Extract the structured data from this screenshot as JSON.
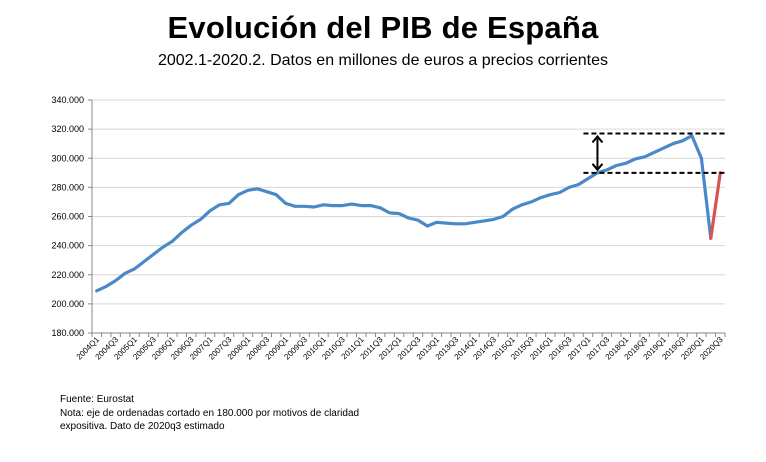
{
  "chart_data": {
    "type": "line",
    "title": "Evolución del PIB de España",
    "subtitle": "2002.1-2020.2. Datos en millones de euros a precios corrientes",
    "xlabel": "",
    "ylabel": "",
    "ylim": [
      180000,
      340000
    ],
    "yticks": [
      180000,
      200000,
      220000,
      240000,
      260000,
      280000,
      300000,
      320000,
      340000
    ],
    "ytick_labels": [
      "180.000",
      "200.000",
      "220.000",
      "240.000",
      "260.000",
      "280.000",
      "300.000",
      "320.000",
      "340.000"
    ],
    "grid": true,
    "legend": "none",
    "categories": [
      "2004Q1",
      "2004Q2",
      "2004Q3",
      "2004Q4",
      "2005Q1",
      "2005Q2",
      "2005Q3",
      "2005Q4",
      "2006Q1",
      "2006Q2",
      "2006Q3",
      "2006Q4",
      "2007Q1",
      "2007Q2",
      "2007Q3",
      "2007Q4",
      "2008Q1",
      "2008Q2",
      "2008Q3",
      "2008Q4",
      "2009Q1",
      "2009Q2",
      "2009Q3",
      "2009Q4",
      "2010Q1",
      "2010Q2",
      "2010Q3",
      "2010Q4",
      "2011Q1",
      "2011Q2",
      "2011Q3",
      "2011Q4",
      "2012Q1",
      "2012Q2",
      "2012Q3",
      "2012Q4",
      "2013Q1",
      "2013Q2",
      "2013Q3",
      "2013Q4",
      "2014Q1",
      "2014Q2",
      "2014Q3",
      "2014Q4",
      "2015Q1",
      "2015Q2",
      "2015Q3",
      "2015Q4",
      "2016Q1",
      "2016Q2",
      "2016Q3",
      "2016Q4",
      "2017Q1",
      "2017Q2",
      "2017Q3",
      "2017Q4",
      "2018Q1",
      "2018Q2",
      "2018Q3",
      "2018Q4",
      "2019Q1",
      "2019Q2",
      "2019Q3",
      "2019Q4",
      "2020Q1",
      "2020Q2",
      "2020Q3"
    ],
    "tick_labels": [
      "2004Q1",
      "2004Q3",
      "2005Q1",
      "2005Q3",
      "2006Q1",
      "2006Q3",
      "2007Q1",
      "2007Q3",
      "2008Q1",
      "2008Q3",
      "2009Q1",
      "2009Q3",
      "2010Q1",
      "2010Q3",
      "2011Q1",
      "2011Q3",
      "2012Q1",
      "2012Q3",
      "2013Q1",
      "2013Q3",
      "2014Q1",
      "2014Q3",
      "2015Q1",
      "2015Q3",
      "2016Q1",
      "2016Q3",
      "2017Q1",
      "2017Q3",
      "2018Q1",
      "2018Q3",
      "2019Q1",
      "2019Q3",
      "2020Q1",
      "2020Q3"
    ],
    "series": [
      {
        "color": "#4a89c8",
        "values": [
          209000,
          212000,
          216000,
          221000,
          224000,
          229000,
          234000,
          239000,
          243000,
          249000,
          254000,
          258000,
          264000,
          268000,
          269000,
          275000,
          278000,
          279000,
          277000,
          275000,
          269000,
          267000,
          267000,
          266500,
          268000,
          267500,
          267500,
          268500,
          267500,
          267500,
          266000,
          262500,
          262000,
          259000,
          257500,
          253500,
          256000,
          255500,
          255000,
          255000,
          256000,
          257000,
          258000,
          260000,
          265000,
          268000,
          270000,
          273000,
          275000,
          276500,
          280000,
          282000,
          286000,
          290000,
          292000,
          295000,
          296500,
          299500,
          301000,
          304000,
          307000,
          310000,
          312000,
          315500,
          300000,
          245000,
          null
        ]
      },
      {
        "color": "#d9534f",
        "values": [
          null,
          null,
          null,
          null,
          null,
          null,
          null,
          null,
          null,
          null,
          null,
          null,
          null,
          null,
          null,
          null,
          null,
          null,
          null,
          null,
          null,
          null,
          null,
          null,
          null,
          null,
          null,
          null,
          null,
          null,
          null,
          null,
          null,
          null,
          null,
          null,
          null,
          null,
          null,
          null,
          null,
          null,
          null,
          null,
          null,
          null,
          null,
          null,
          null,
          null,
          null,
          null,
          null,
          null,
          null,
          null,
          null,
          null,
          null,
          null,
          null,
          null,
          null,
          null,
          null,
          245000,
          290000
        ]
      }
    ],
    "annotations": {
      "reference_lines": [
        317000,
        290000
      ],
      "double_arrow": {
        "category": "2017Q2",
        "from": 290000,
        "to": 317000
      }
    }
  },
  "notes": {
    "source": "Fuente: Eurostat",
    "note_line1": "Nota: eje de ordenadas cortado en 180.000 por motivos de claridad",
    "note_line2": "expositiva. Dato de 2020q3 estimado"
  }
}
